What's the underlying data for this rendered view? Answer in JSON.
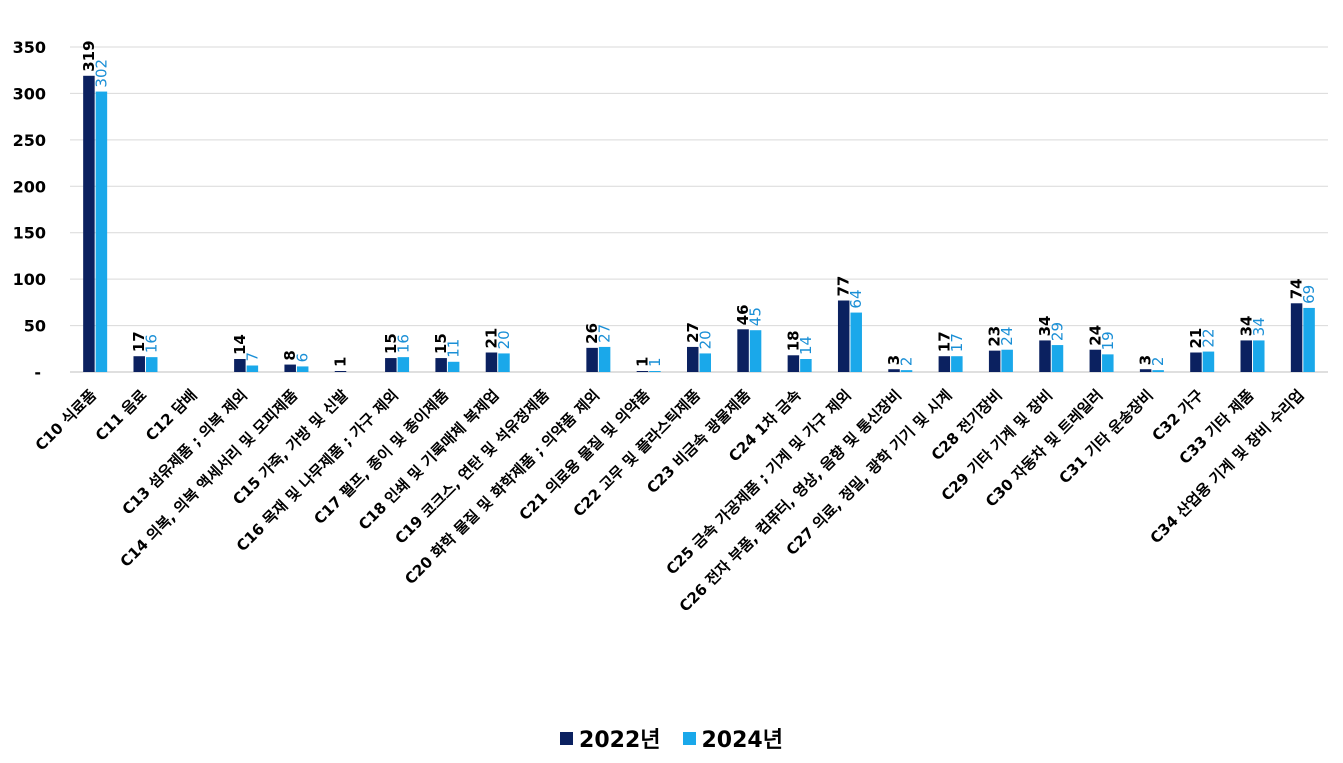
{
  "chart_data": {
    "type": "bar",
    "categories": [
      "C10 식료품",
      "C11 음료",
      "C12 담배",
      "C13 섬유제품 ; 의복 제외",
      "C14 의복, 의복 액세서리 및 모피제품",
      "C15 가죽, 가방 및 신발",
      "C16 목재 및 나무제품 ; 가구 제외",
      "C17 펄프, 종이 및 종이제품",
      "C18 인쇄 및 기록매체 복제업",
      "C19 코크스, 연탄 및 석유정제품",
      "C20 화학 물질 및 화학제품 ; 의약품 제외",
      "C21 의료용 물질 및 의약품",
      "C22 고무 및 플라스틱제품",
      "C23 비금속 광물제품",
      "C24 1차 금속",
      "C25 금속 가공제품 ; 기계 및 가구 제외",
      "C26 전자 부품, 컴퓨터, 영상, 음향 및 통신장비",
      "C27 의료, 정밀, 광학 기기 및 시계",
      "C28 전기장비",
      "C29 기타 기계 및 장비",
      "C30 자동차 및 트레일러",
      "C31 기타 운송장비",
      "C32 가구",
      "C33 기타 제품",
      "C34 산업용 기계 및 장비 수리업"
    ],
    "series": [
      {
        "name": "2022년",
        "color": "#0b2160",
        "values": [
          319,
          17,
          null,
          14,
          8,
          1,
          15,
          15,
          21,
          null,
          26,
          1,
          27,
          46,
          18,
          77,
          3,
          17,
          23,
          34,
          24,
          3,
          21,
          34,
          74
        ]
      },
      {
        "name": "2024년",
        "color": "#1aa8ea",
        "values": [
          302,
          16,
          null,
          7,
          6,
          null,
          16,
          11,
          20,
          null,
          27,
          1,
          20,
          45,
          14,
          64,
          2,
          17,
          24,
          29,
          19,
          2,
          22,
          34,
          69
        ]
      }
    ],
    "label_colors": {
      "s1": "#000000",
      "s2": "#1a8fd6"
    },
    "yticks": [
      "-",
      "50",
      "100",
      "150",
      "200",
      "250",
      "300",
      "350"
    ],
    "ylim": [
      0,
      350
    ],
    "grid": true,
    "legend": "bottom-center"
  }
}
